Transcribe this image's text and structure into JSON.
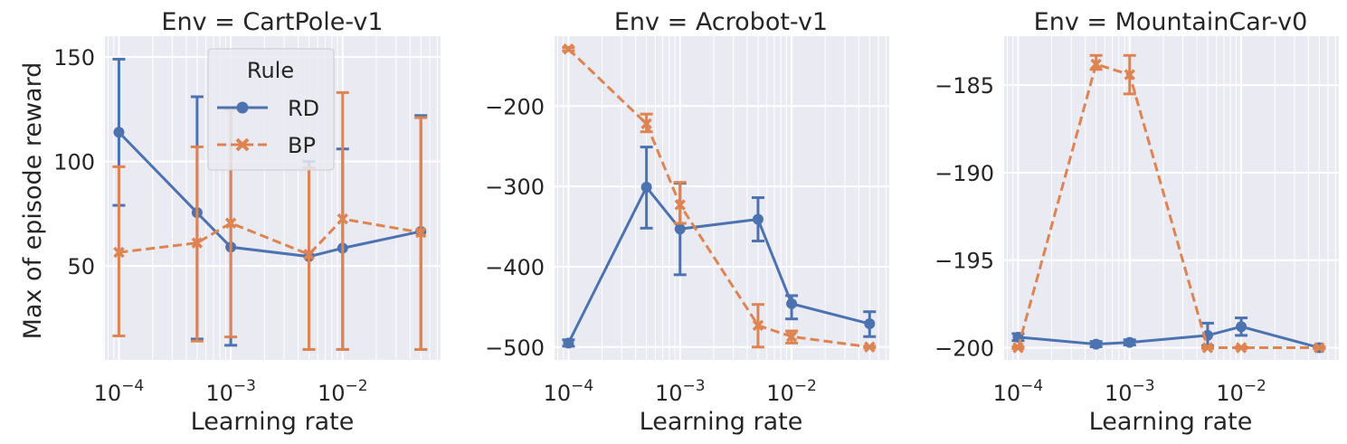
{
  "figure": {
    "ylabel": "Max of episode reward",
    "legend": {
      "title": "Rule",
      "location": "upper-center of first panel"
    },
    "colors": {
      "RD": "#4c72b0",
      "BP": "#dd8452",
      "background": "#eaeaf2",
      "grid": "#ffffff"
    }
  },
  "chart_data": [
    {
      "type": "line",
      "title": "Env = CartPole-v1",
      "xlabel": "Learning rate",
      "xscale": "log",
      "xlim": [
        7.5e-05,
        0.075
      ],
      "ylim": [
        5,
        160
      ],
      "yticks": [
        50,
        100,
        150
      ],
      "ytick_labels": [
        "50",
        "100",
        "150"
      ],
      "xticks": [
        0.0001,
        0.001,
        0.01
      ],
      "xtick_labels": [
        "10",
        "10",
        "10"
      ],
      "xtick_exponents": [
        "−4",
        "−3",
        "−2"
      ],
      "grid": true,
      "x": [
        0.0001,
        0.0005,
        0.001,
        0.005,
        0.01,
        0.05
      ],
      "series": [
        {
          "name": "RD",
          "marker": "circle",
          "linestyle": "solid",
          "values": [
            114,
            75.5,
            59,
            54.5,
            58.5,
            66.5
          ],
          "err_low": [
            79,
            15,
            12,
            10,
            10,
            10
          ],
          "err_high": [
            149,
            131,
            125,
            100,
            106,
            122
          ]
        },
        {
          "name": "BP",
          "marker": "x",
          "linestyle": "dashed",
          "values": [
            56.5,
            61,
            70.5,
            55.5,
            72.5,
            66
          ],
          "err_low": [
            16.5,
            14,
            16,
            10,
            10,
            10
          ],
          "err_high": [
            97.5,
            107,
            125,
            97,
            133,
            121
          ]
        }
      ]
    },
    {
      "type": "line",
      "title": "Env = Acrobot-v1",
      "xlabel": "Learning rate",
      "xscale": "log",
      "xlim": [
        7.5e-05,
        0.075
      ],
      "ylim": [
        -516,
        -113
      ],
      "yticks": [
        -500,
        -400,
        -300,
        -200
      ],
      "ytick_labels": [
        "−500",
        "−400",
        "−300",
        "−200"
      ],
      "xticks": [
        0.0001,
        0.001,
        0.01
      ],
      "xtick_labels": [
        "10",
        "10",
        "10"
      ],
      "xtick_exponents": [
        "−4",
        "−3",
        "−2"
      ],
      "grid": true,
      "x": [
        0.0001,
        0.0005,
        0.001,
        0.005,
        0.01,
        0.05
      ],
      "series": [
        {
          "name": "RD",
          "marker": "circle",
          "linestyle": "solid",
          "values": [
            -495,
            -301,
            -353,
            -341,
            -446,
            -471
          ],
          "err_low": [
            -499,
            -352,
            -410,
            -368,
            -465,
            -487
          ],
          "err_high": [
            -491,
            -251,
            -296,
            -314,
            -436,
            -456
          ]
        },
        {
          "name": "BP",
          "marker": "x",
          "linestyle": "dashed",
          "values": [
            -129,
            -222,
            -323,
            -473,
            -487,
            -500
          ],
          "err_low": [
            -131,
            -232,
            -346,
            -500,
            -495,
            -501
          ],
          "err_high": [
            -127,
            -210,
            -295,
            -447,
            -480,
            -499
          ]
        }
      ]
    },
    {
      "type": "line",
      "title": "Env = MountainCar-v0",
      "xlabel": "Learning rate",
      "xscale": "log",
      "xlim": [
        7.5e-05,
        0.075
      ],
      "ylim": [
        -200.7,
        -182.2
      ],
      "yticks": [
        -200,
        -195,
        -190,
        -185
      ],
      "ytick_labels": [
        "−200",
        "−195",
        "−190",
        "−185"
      ],
      "xticks": [
        0.0001,
        0.001,
        0.01
      ],
      "xtick_labels": [
        "10",
        "10",
        "10"
      ],
      "xtick_exponents": [
        "−4",
        "−3",
        "−2"
      ],
      "grid": true,
      "x": [
        0.0001,
        0.0005,
        0.001,
        0.005,
        0.01,
        0.05
      ],
      "series": [
        {
          "name": "RD",
          "marker": "circle",
          "linestyle": "solid",
          "values": [
            -199.4,
            -199.8,
            -199.7,
            -199.3,
            -198.8,
            -200
          ],
          "err_low": [
            -199.6,
            -199.95,
            -199.85,
            -199.9,
            -199.3,
            -200.05
          ],
          "err_high": [
            -199.2,
            -199.65,
            -199.55,
            -198.6,
            -198.3,
            -199.95
          ]
        },
        {
          "name": "BP",
          "marker": "x",
          "linestyle": "dashed",
          "values": [
            -200,
            -183.8,
            -184.4,
            -200,
            -200,
            -200
          ],
          "err_low": [
            -200.05,
            -184.1,
            -185.5,
            -200.05,
            -200.05,
            -200.05
          ],
          "err_high": [
            -199.95,
            -183.3,
            -183.3,
            -199.95,
            -199.95,
            -199.95
          ]
        }
      ]
    }
  ]
}
